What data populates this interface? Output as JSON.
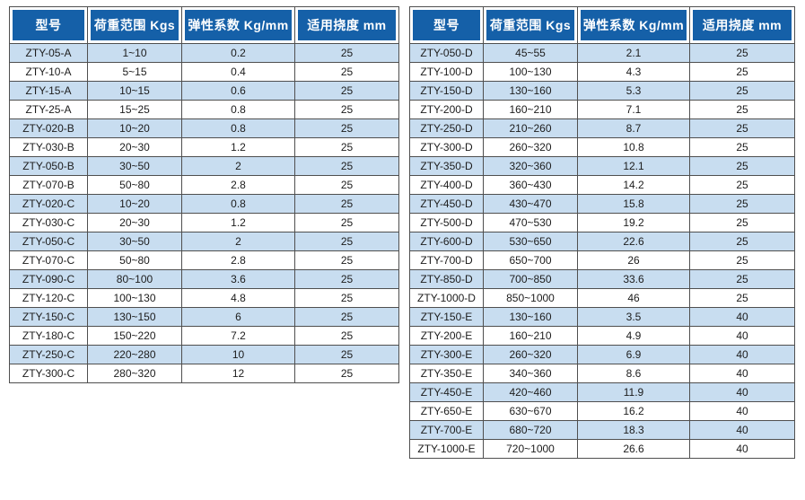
{
  "colors": {
    "header_bg": "#1560a8",
    "header_text": "#ffffff",
    "row_alt_bg": "#c8ddf0",
    "row_bg": "#ffffff",
    "grid_border": "#4f4f4f",
    "cell_text": "#1c1c1c"
  },
  "left_table": {
    "headers": [
      "型号",
      "荷重范围 Kgs",
      "弹性系数 Kg/mm",
      "适用挠度 mm"
    ],
    "rows": [
      [
        "ZTY-05-A",
        "1~10",
        "0.2",
        "25"
      ],
      [
        "ZTY-10-A",
        "5~15",
        "0.4",
        "25"
      ],
      [
        "ZTY-15-A",
        "10~15",
        "0.6",
        "25"
      ],
      [
        "ZTY-25-A",
        "15~25",
        "0.8",
        "25"
      ],
      [
        "ZTY-020-B",
        "10~20",
        "0.8",
        "25"
      ],
      [
        "ZTY-030-B",
        "20~30",
        "1.2",
        "25"
      ],
      [
        "ZTY-050-B",
        "30~50",
        "2",
        "25"
      ],
      [
        "ZTY-070-B",
        "50~80",
        "2.8",
        "25"
      ],
      [
        "ZTY-020-C",
        "10~20",
        "0.8",
        "25"
      ],
      [
        "ZTY-030-C",
        "20~30",
        "1.2",
        "25"
      ],
      [
        "ZTY-050-C",
        "30~50",
        "2",
        "25"
      ],
      [
        "ZTY-070-C",
        "50~80",
        "2.8",
        "25"
      ],
      [
        "ZTY-090-C",
        "80~100",
        "3.6",
        "25"
      ],
      [
        "ZTY-120-C",
        "100~130",
        "4.8",
        "25"
      ],
      [
        "ZTY-150-C",
        "130~150",
        "6",
        "25"
      ],
      [
        "ZTY-180-C",
        "150~220",
        "7.2",
        "25"
      ],
      [
        "ZTY-250-C",
        "220~280",
        "10",
        "25"
      ],
      [
        "ZTY-300-C",
        "280~320",
        "12",
        "25"
      ]
    ]
  },
  "right_table": {
    "headers": [
      "型号",
      "荷重范围 Kgs",
      "弹性系数 Kg/mm",
      "适用挠度 mm"
    ],
    "rows": [
      [
        "ZTY-050-D",
        "45~55",
        "2.1",
        "25"
      ],
      [
        "ZTY-100-D",
        "100~130",
        "4.3",
        "25"
      ],
      [
        "ZTY-150-D",
        "130~160",
        "5.3",
        "25"
      ],
      [
        "ZTY-200-D",
        "160~210",
        "7.1",
        "25"
      ],
      [
        "ZTY-250-D",
        "210~260",
        "8.7",
        "25"
      ],
      [
        "ZTY-300-D",
        "260~320",
        "10.8",
        "25"
      ],
      [
        "ZTY-350-D",
        "320~360",
        "12.1",
        "25"
      ],
      [
        "ZTY-400-D",
        "360~430",
        "14.2",
        "25"
      ],
      [
        "ZTY-450-D",
        "430~470",
        "15.8",
        "25"
      ],
      [
        "ZTY-500-D",
        "470~530",
        "19.2",
        "25"
      ],
      [
        "ZTY-600-D",
        "530~650",
        "22.6",
        "25"
      ],
      [
        "ZTY-700-D",
        "650~700",
        "26",
        "25"
      ],
      [
        "ZTY-850-D",
        "700~850",
        "33.6",
        "25"
      ],
      [
        "ZTY-1000-D",
        "850~1000",
        "46",
        "25"
      ],
      [
        "ZTY-150-E",
        "130~160",
        "3.5",
        "40"
      ],
      [
        "ZTY-200-E",
        "160~210",
        "4.9",
        "40"
      ],
      [
        "ZTY-300-E",
        "260~320",
        "6.9",
        "40"
      ],
      [
        "ZTY-350-E",
        "340~360",
        "8.6",
        "40"
      ],
      [
        "ZTY-450-E",
        "420~460",
        "11.9",
        "40"
      ],
      [
        "ZTY-650-E",
        "630~670",
        "16.2",
        "40"
      ],
      [
        "ZTY-700-E",
        "680~720",
        "18.3",
        "40"
      ],
      [
        "ZTY-1000-E",
        "720~1000",
        "26.6",
        "40"
      ]
    ]
  }
}
